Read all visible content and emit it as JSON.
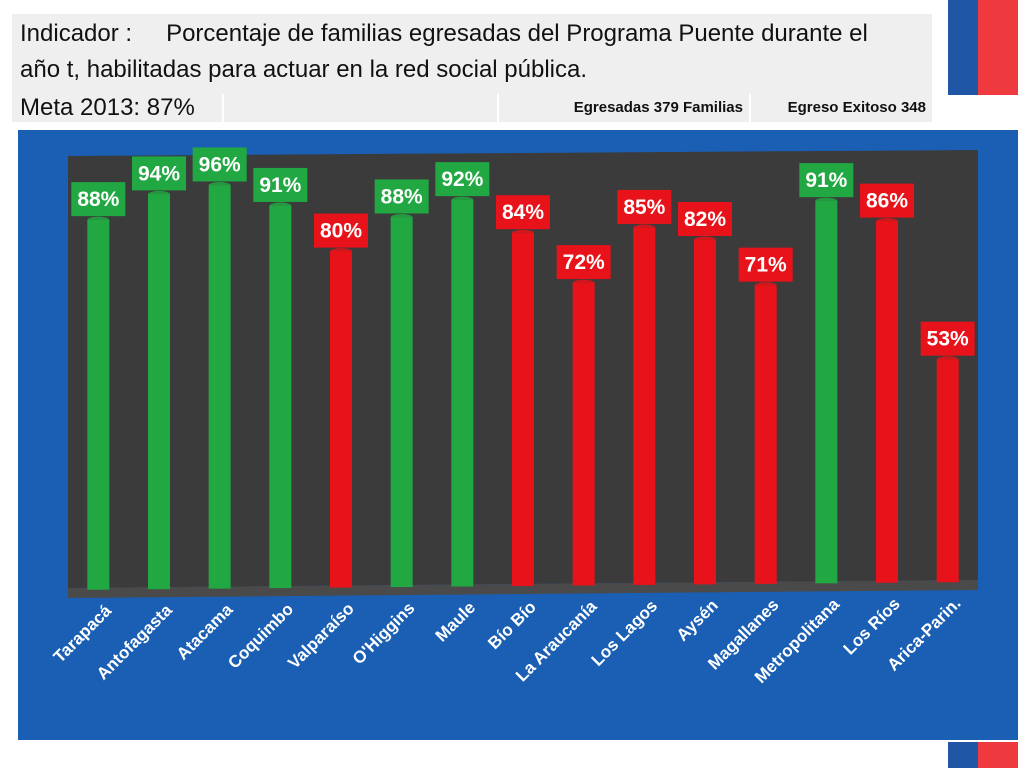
{
  "header": {
    "indicator_label": "Indicador :",
    "indicator_text_line1": "Porcentaje de familias egresadas del Programa Puente durante el",
    "indicator_text_line2": "año t, habilitadas para actuar en la red social pública.",
    "meta": "Meta 2013:  87%",
    "egresadas": "Egresadas 379 Familias",
    "egreso_exitoso": "Egreso Exitoso 348"
  },
  "colors": {
    "above_goal": "#22a843",
    "below_goal": "#e8131a",
    "panel": "#1a5fb4",
    "plot_bg": "#3b3b3b",
    "floor": "#4a4a4a",
    "brand_blue": "#1f56a6",
    "brand_red": "#ee3a3f"
  },
  "chart_data": {
    "type": "bar",
    "title": "",
    "xlabel": "",
    "ylabel": "",
    "ylim": [
      0,
      100
    ],
    "goal": 87,
    "categories": [
      "Tarapacá",
      "Antofagasta",
      "Atacama",
      "Coquimbo",
      "Valparaíso",
      "O'Higgins",
      "Maule",
      "Bío Bío",
      "La Araucanía",
      "Los Lagos",
      "Aysén",
      "Magallanes",
      "Metropolitana",
      "Los Ríos",
      "Arica-Parin."
    ],
    "values": [
      88,
      94,
      96,
      91,
      80,
      88,
      92,
      84,
      72,
      85,
      82,
      71,
      91,
      86,
      53
    ],
    "data_labels": [
      "88%",
      "94%",
      "96%",
      "91%",
      "80%",
      "88%",
      "92%",
      "84%",
      "72%",
      "85%",
      "82%",
      "71%",
      "91%",
      "86%",
      "53%"
    ]
  }
}
